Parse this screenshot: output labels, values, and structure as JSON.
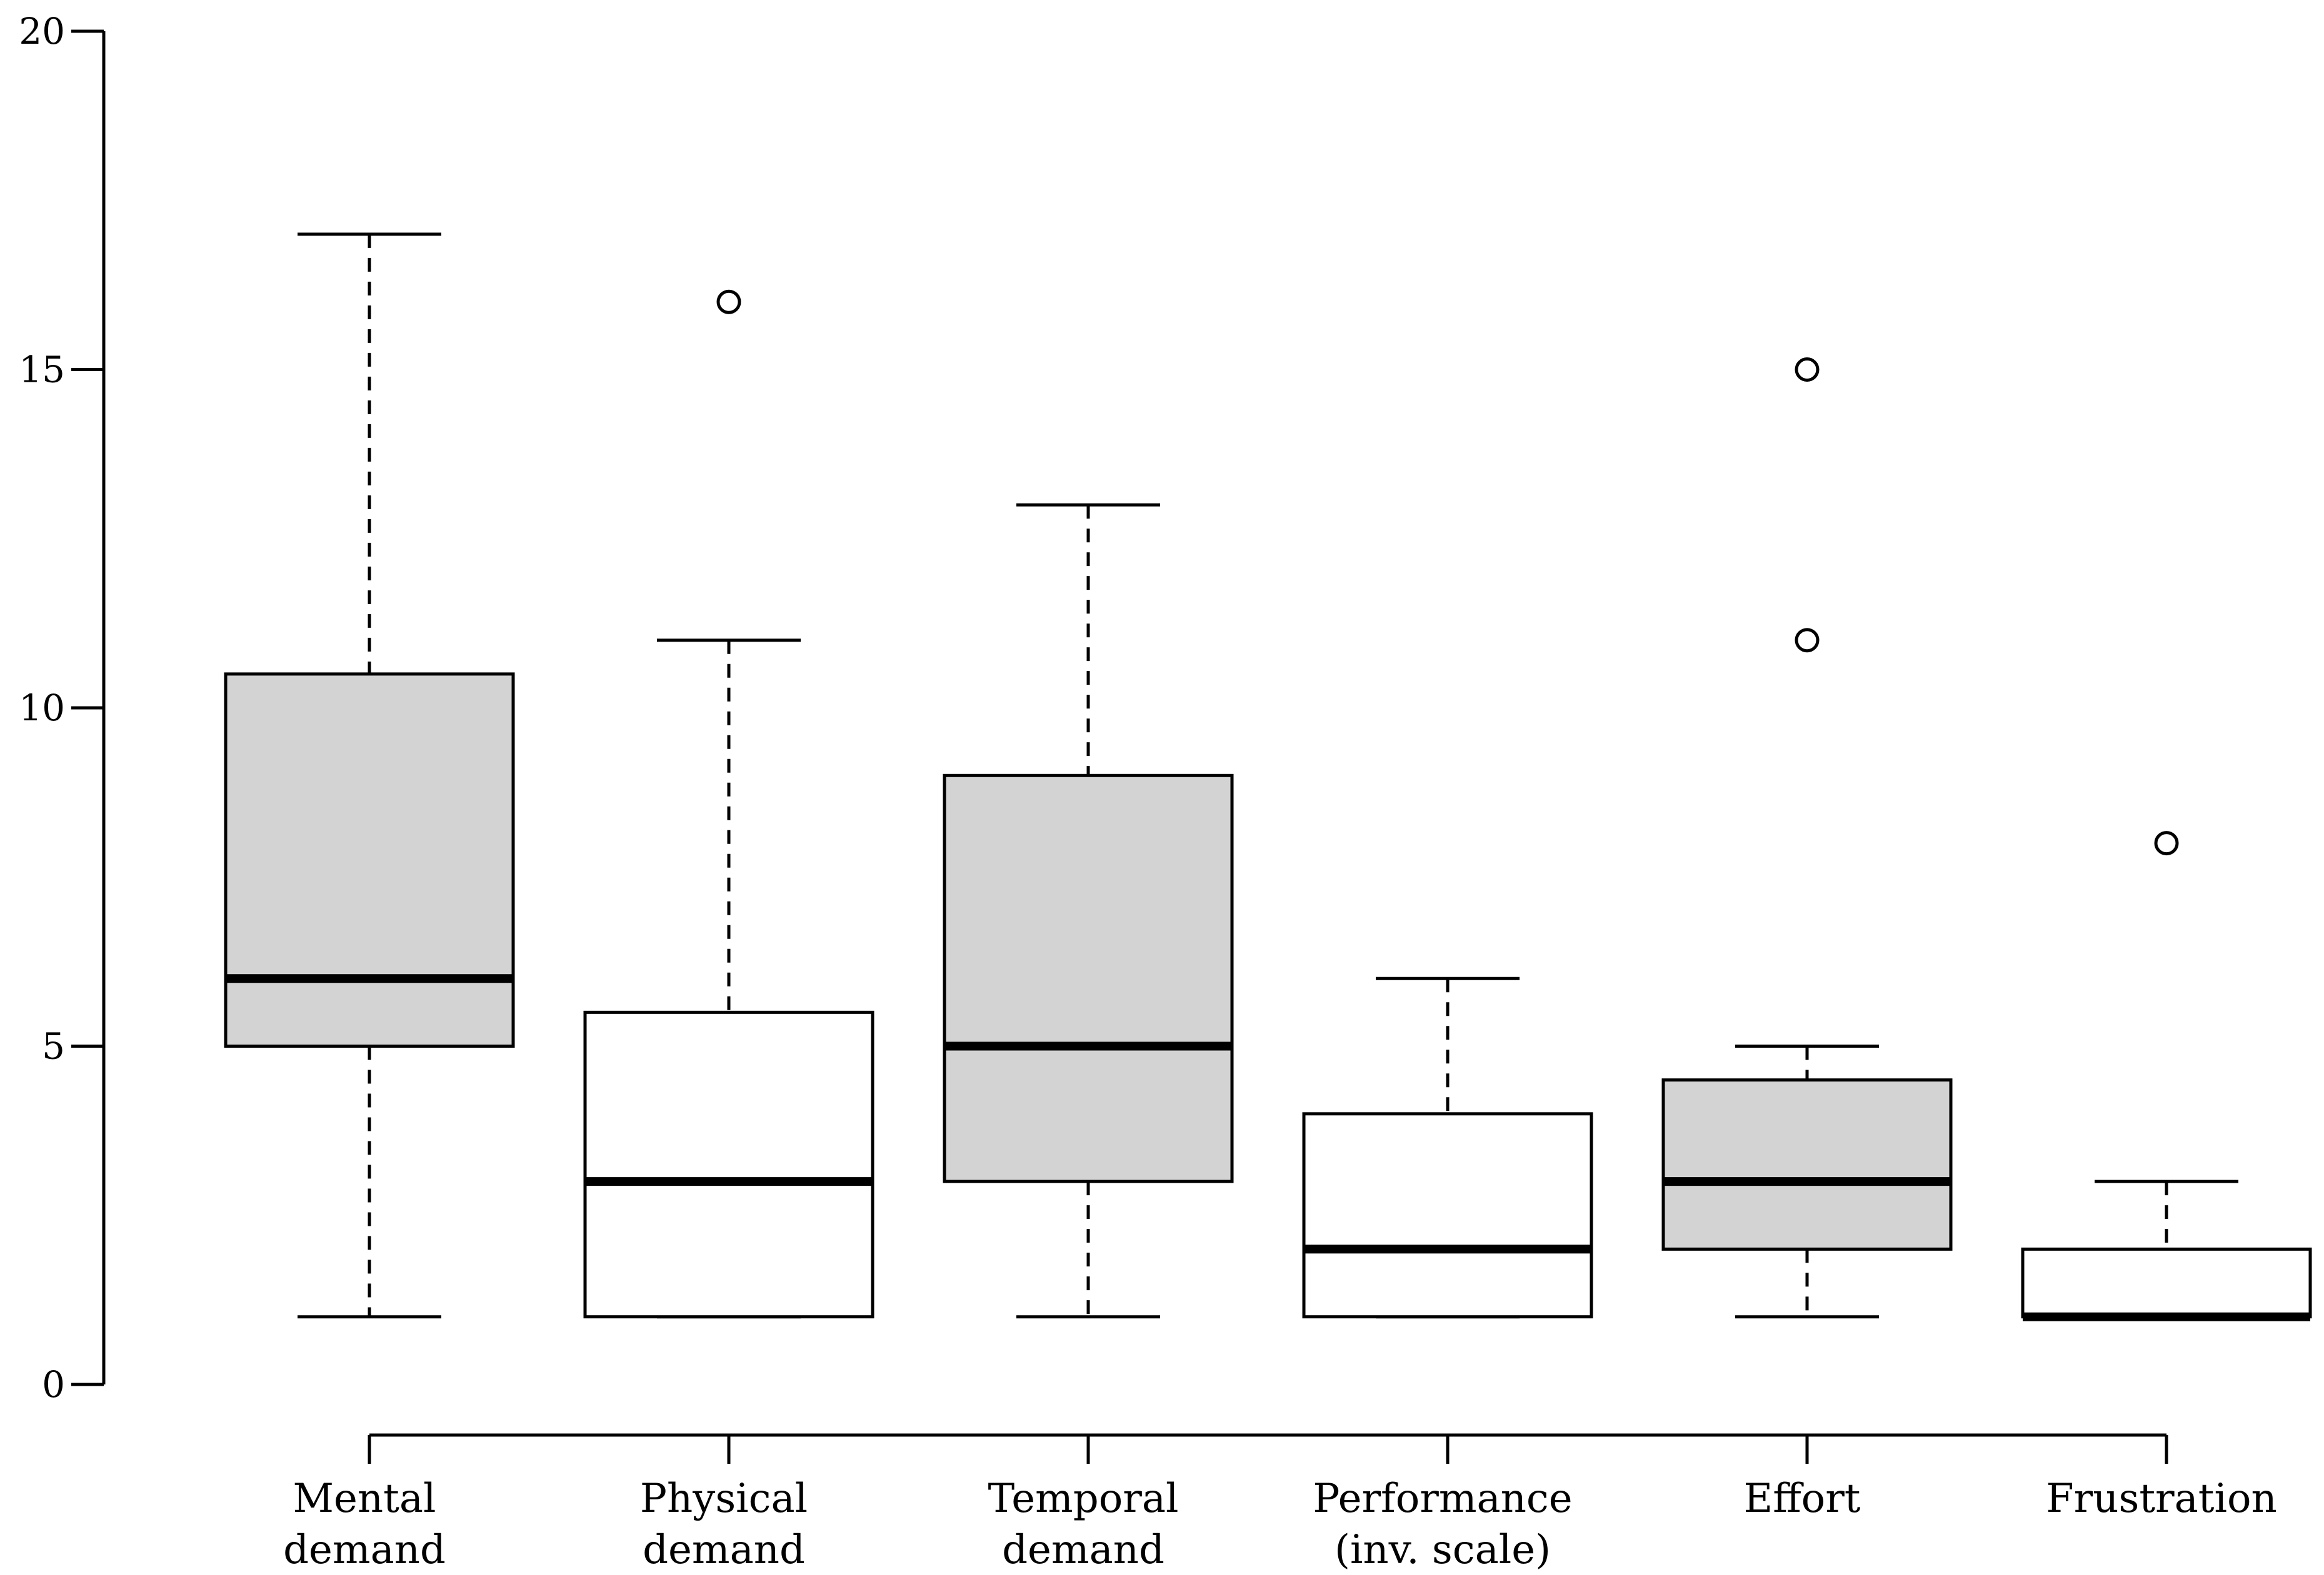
{
  "chart_data": {
    "type": "boxplot",
    "title": "",
    "xlabel": "",
    "ylabel": "",
    "ylim": [
      0,
      20
    ],
    "yticks": [
      0,
      5,
      10,
      15,
      20
    ],
    "ytick_labels": [
      "0",
      "5",
      "10",
      "15",
      "20"
    ],
    "categories": [
      {
        "lines": [
          "Mental",
          "demand"
        ]
      },
      {
        "lines": [
          "Physical",
          "demand"
        ]
      },
      {
        "lines": [
          "Temporal",
          "demand"
        ]
      },
      {
        "lines": [
          "Performance",
          "(inv. scale)"
        ]
      },
      {
        "lines": [
          "Effort"
        ]
      },
      {
        "lines": [
          "Frustration"
        ]
      }
    ],
    "boxes": [
      {
        "name": "Mental demand",
        "whisker_low": 1,
        "q1": 5,
        "median": 6,
        "q3": 10.5,
        "whisker_high": 17,
        "outliers": [],
        "fill": "#d3d3d3"
      },
      {
        "name": "Physical demand",
        "whisker_low": 1,
        "q1": 1,
        "median": 3,
        "q3": 5.5,
        "whisker_high": 11,
        "outliers": [
          16
        ],
        "fill": "#ffffff"
      },
      {
        "name": "Temporal demand",
        "whisker_low": 1,
        "q1": 3,
        "median": 5,
        "q3": 9,
        "whisker_high": 13,
        "outliers": [],
        "fill": "#d3d3d3"
      },
      {
        "name": "Performance (inv. scale)",
        "whisker_low": 1,
        "q1": 1,
        "median": 2,
        "q3": 4,
        "whisker_high": 6,
        "outliers": [],
        "fill": "#ffffff"
      },
      {
        "name": "Effort",
        "whisker_low": 1,
        "q1": 2,
        "median": 3,
        "q3": 4.5,
        "whisker_high": 5,
        "outliers": [
          11,
          15
        ],
        "fill": "#d3d3d3"
      },
      {
        "name": "Frustration",
        "whisker_low": 1,
        "q1": 1,
        "median": 1,
        "q3": 2,
        "whisker_high": 3,
        "outliers": [
          8
        ],
        "fill": "#ffffff"
      }
    ],
    "grid": false,
    "legend": "none"
  },
  "colors": {
    "stroke": "#000000",
    "shaded_fill": "#d3d3d3",
    "plain_fill": "#ffffff"
  }
}
